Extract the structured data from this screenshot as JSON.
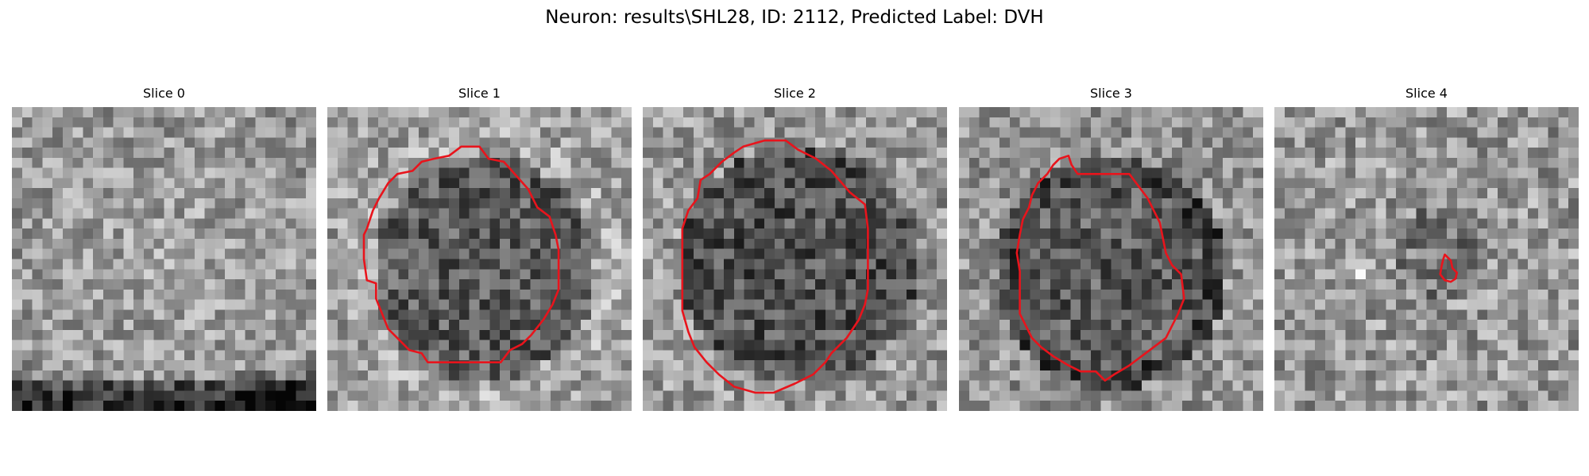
{
  "title": "Neuron: results\\SHL28, ID: 2112, Predicted Label: DVH",
  "slices": [
    {
      "label": "Slice 0",
      "image": "grayscale-noise-brighter-center-dark-bottom-band",
      "roi_present": false
    },
    {
      "label": "Slice 1",
      "image": "grayscale-noise-dark-round-soma",
      "roi_present": true
    },
    {
      "label": "Slice 2",
      "image": "grayscale-noise-large-dark-round-soma",
      "roi_present": true
    },
    {
      "label": "Slice 3",
      "image": "grayscale-noise-dark-round-soma",
      "roi_present": true
    },
    {
      "label": "Slice 4",
      "image": "grayscale-noise-faint-spot",
      "roi_present": true
    }
  ],
  "colors": {
    "roi_contour": "#e8141c",
    "background": "#ffffff",
    "text": "#000000"
  }
}
